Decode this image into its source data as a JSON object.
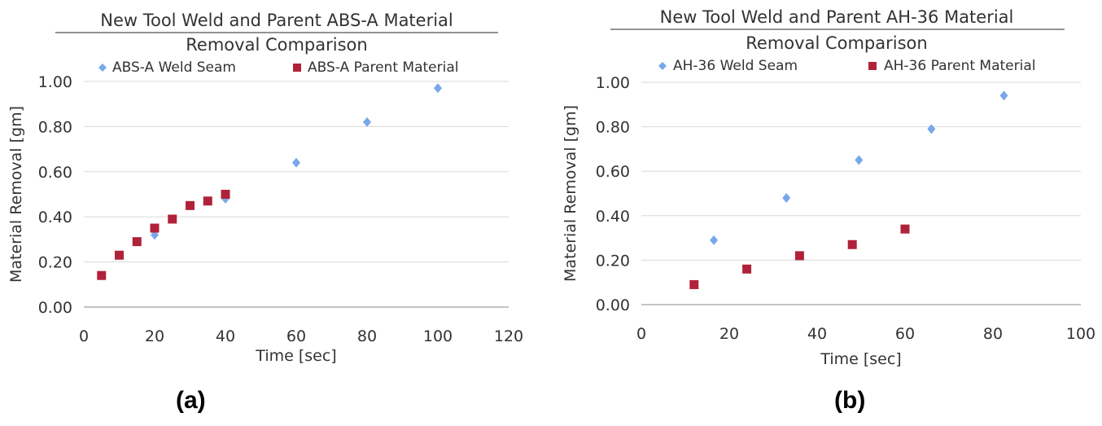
{
  "chart_data": [
    {
      "type": "scatter",
      "title": "New Tool Weld and Parent ABS-A Material Removal Comparison",
      "title_lines": [
        "New Tool Weld and Parent ABS-A Material",
        "Removal Comparison"
      ],
      "xlabel": "Time [sec]",
      "ylabel": "Material Removal [gm]",
      "xlim": [
        0,
        120
      ],
      "ylim": [
        0,
        1
      ],
      "xticks": [
        "0",
        "20",
        "40",
        "60",
        "80",
        "100",
        "120"
      ],
      "yticks": [
        "0.00",
        "0.20",
        "0.40",
        "0.60",
        "0.80",
        "1.00"
      ],
      "grid": "horizontal",
      "legend": "top",
      "series": [
        {
          "name": "ABS-A Weld Seam",
          "marker": "diamond",
          "color": "#7aa7ea",
          "x": [
            20,
            40,
            60,
            80,
            100
          ],
          "y": [
            0.32,
            0.48,
            0.64,
            0.82,
            0.97
          ]
        },
        {
          "name": "ABS-A Parent Material",
          "marker": "square",
          "color": "#b0223a",
          "x": [
            5,
            10,
            15,
            20,
            25,
            30,
            35,
            40
          ],
          "y": [
            0.14,
            0.23,
            0.29,
            0.35,
            0.39,
            0.45,
            0.47,
            0.5
          ]
        }
      ]
    },
    {
      "type": "scatter",
      "title": "New Tool Weld and Parent AH-36 Material Removal Comparison",
      "title_lines": [
        "New Tool Weld and Parent AH-36 Material",
        "Removal Comparison"
      ],
      "xlabel": "Time [sec]",
      "ylabel": "Material Removal [gm]",
      "xlim": [
        0,
        100
      ],
      "ylim": [
        0,
        1
      ],
      "xticks": [
        "0",
        "20",
        "40",
        "60",
        "80",
        "100"
      ],
      "yticks": [
        "0.00",
        "0.20",
        "0.40",
        "0.60",
        "0.80",
        "1.00"
      ],
      "grid": "horizontal",
      "legend": "top",
      "series": [
        {
          "name": "AH-36 Weld Seam",
          "marker": "diamond",
          "color": "#7aa7ea",
          "x": [
            16.5,
            33,
            49.5,
            66,
            82.5
          ],
          "y": [
            0.29,
            0.48,
            0.65,
            0.79,
            0.94
          ]
        },
        {
          "name": "AH-36 Parent Material",
          "marker": "square",
          "color": "#b0223a",
          "x": [
            12,
            24,
            36,
            48,
            60
          ],
          "y": [
            0.09,
            0.16,
            0.22,
            0.27,
            0.34
          ]
        }
      ]
    }
  ],
  "captions": {
    "a": "(a)",
    "b": "(b)"
  }
}
